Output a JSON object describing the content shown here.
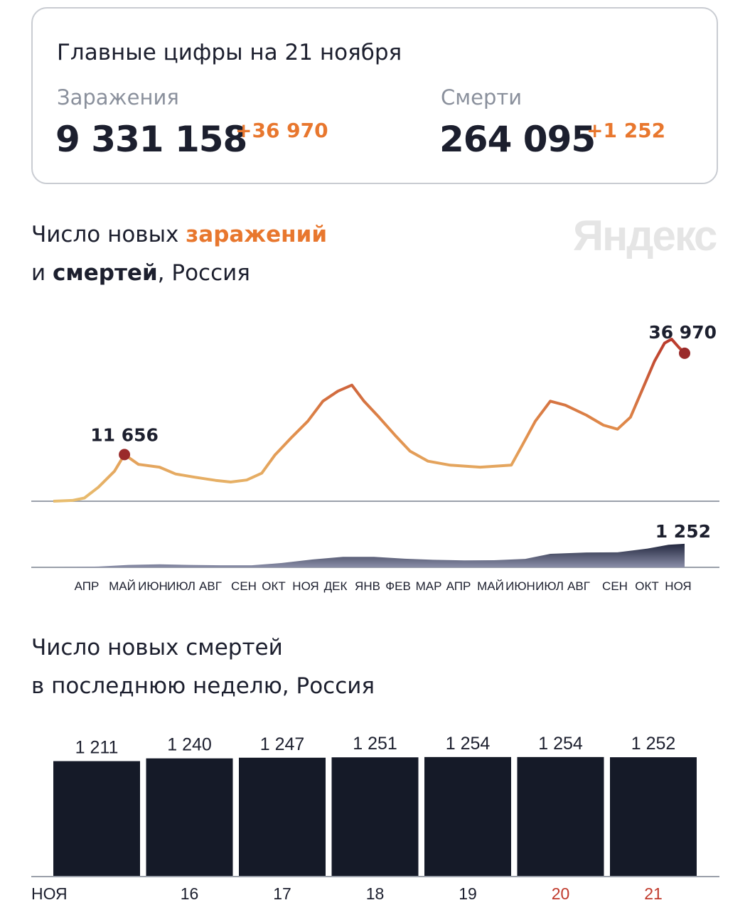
{
  "summary": {
    "title": "Главные цифры на 21 ноября",
    "infections_label": "Заражения",
    "infections_total": "9 331 158",
    "infections_delta": "+36 970",
    "deaths_label": "Смерти",
    "deaths_total": "264 095",
    "deaths_delta": "+1 252"
  },
  "logo": "Яндекс",
  "colors": {
    "accent": "#e8772e",
    "low": "#e8bd6f",
    "high": "#b8352a",
    "deaths": "#3a3f5e",
    "bars": "#151a28",
    "weekend": "#c0392b"
  },
  "chart_data": [
    {
      "type": "area",
      "title_parts": [
        "Число новых ",
        "заражений",
        " и ",
        "смертей",
        ", Россия"
      ],
      "x_ticks": [
        "АПР",
        "МАЙ",
        "ИЮН",
        "ИЮЛ",
        "АВГ",
        "СЕН",
        "ОКТ",
        "НОЯ",
        "ДЕК",
        "ЯНВ",
        "ФЕВ",
        "МАР",
        "АПР",
        "МАЙ",
        "ИЮН",
        "ИЮЛ",
        "АВГ",
        "СЕН",
        "ОКТ",
        "НОЯ"
      ],
      "infections": {
        "annotations": [
          {
            "date": "2020-05-11",
            "value": 11656,
            "label": "11 656"
          },
          {
            "date": "2021-11-21",
            "value": 36970,
            "label": "36 970"
          }
        ],
        "points": [
          [
            "2020-03-01",
            0
          ],
          [
            "2020-03-20",
            200
          ],
          [
            "2020-04-01",
            800
          ],
          [
            "2020-04-15",
            3500
          ],
          [
            "2020-05-01",
            7500
          ],
          [
            "2020-05-11",
            11656
          ],
          [
            "2020-05-25",
            9200
          ],
          [
            "2020-06-15",
            8500
          ],
          [
            "2020-07-01",
            6800
          ],
          [
            "2020-07-20",
            6000
          ],
          [
            "2020-08-10",
            5200
          ],
          [
            "2020-08-25",
            4800
          ],
          [
            "2020-09-10",
            5300
          ],
          [
            "2020-09-25",
            7000
          ],
          [
            "2020-10-08",
            11500
          ],
          [
            "2020-10-25",
            16000
          ],
          [
            "2020-11-10",
            20000
          ],
          [
            "2020-11-25",
            25000
          ],
          [
            "2020-12-10",
            27500
          ],
          [
            "2020-12-24",
            29000
          ],
          [
            "2021-01-05",
            25000
          ],
          [
            "2021-01-20",
            21000
          ],
          [
            "2021-02-05",
            16500
          ],
          [
            "2021-02-20",
            12500
          ],
          [
            "2021-03-10",
            10000
          ],
          [
            "2021-04-01",
            9000
          ],
          [
            "2021-05-01",
            8500
          ],
          [
            "2021-06-01",
            9000
          ],
          [
            "2021-06-12",
            14000
          ],
          [
            "2021-06-25",
            20000
          ],
          [
            "2021-07-10",
            25000
          ],
          [
            "2021-07-25",
            24000
          ],
          [
            "2021-08-15",
            21500
          ],
          [
            "2021-09-01",
            19000
          ],
          [
            "2021-09-15",
            18000
          ],
          [
            "2021-09-28",
            21000
          ],
          [
            "2021-10-10",
            28000
          ],
          [
            "2021-10-22",
            35000
          ],
          [
            "2021-11-01",
            39500
          ],
          [
            "2021-11-08",
            40500
          ],
          [
            "2021-11-15",
            38500
          ],
          [
            "2021-11-21",
            36970
          ]
        ]
      },
      "deaths": {
        "annotation": {
          "date": "2021-11-21",
          "value": 1252,
          "label": "1 252"
        },
        "points": [
          [
            "2020-03-01",
            0
          ],
          [
            "2020-04-15",
            40
          ],
          [
            "2020-05-15",
            130
          ],
          [
            "2020-06-15",
            160
          ],
          [
            "2020-07-15",
            130
          ],
          [
            "2020-08-15",
            110
          ],
          [
            "2020-09-15",
            110
          ],
          [
            "2020-10-15",
            230
          ],
          [
            "2020-11-15",
            420
          ],
          [
            "2020-12-15",
            560
          ],
          [
            "2021-01-15",
            560
          ],
          [
            "2021-02-15",
            460
          ],
          [
            "2021-03-15",
            400
          ],
          [
            "2021-04-15",
            370
          ],
          [
            "2021-05-15",
            380
          ],
          [
            "2021-06-15",
            450
          ],
          [
            "2021-07-10",
            720
          ],
          [
            "2021-08-15",
            790
          ],
          [
            "2021-09-15",
            800
          ],
          [
            "2021-10-15",
            1000
          ],
          [
            "2021-11-05",
            1200
          ],
          [
            "2021-11-21",
            1252
          ]
        ]
      }
    },
    {
      "type": "bar",
      "title_line1": "Число новых смертей",
      "title_line2": "в последнюю неделю, Россия",
      "categories": [
        "НОЯ",
        "16",
        "17",
        "18",
        "19",
        "20",
        "21"
      ],
      "weekend": [
        false,
        false,
        false,
        false,
        false,
        true,
        true
      ],
      "values": [
        1211,
        1240,
        1247,
        1251,
        1254,
        1254,
        1252
      ],
      "labels": [
        "1 211",
        "1 240",
        "1 247",
        "1 251",
        "1 254",
        "1 254",
        "1 252"
      ],
      "ylim": [
        0,
        1254
      ]
    }
  ]
}
